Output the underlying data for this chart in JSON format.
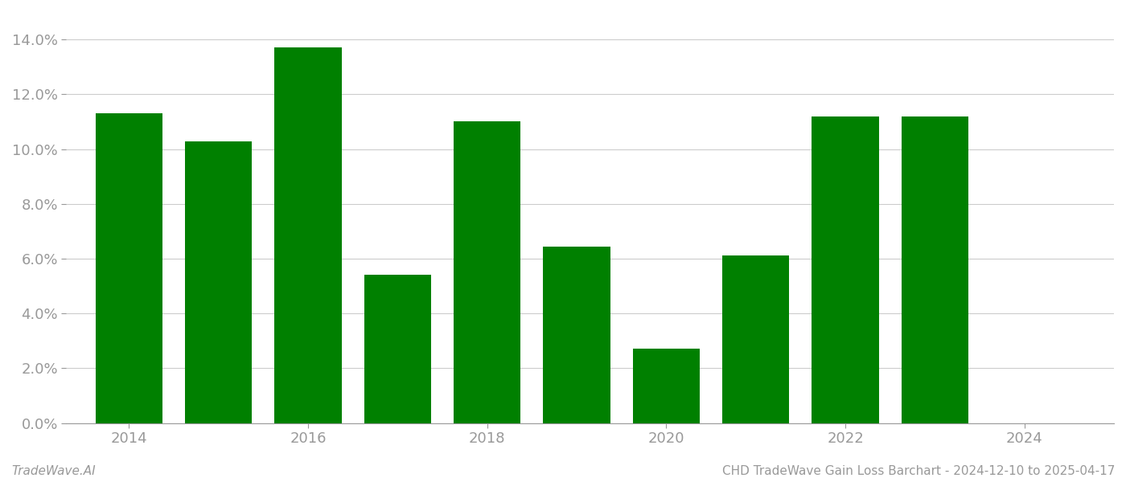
{
  "years": [
    2014,
    2015,
    2016,
    2017,
    2018,
    2019,
    2020,
    2021,
    2022,
    2023
  ],
  "values": [
    0.113,
    0.1028,
    0.137,
    0.0542,
    0.11,
    0.0643,
    0.027,
    0.0613,
    0.112,
    0.112
  ],
  "bar_color": "#008000",
  "ylim": [
    0,
    0.15
  ],
  "yticks": [
    0.0,
    0.02,
    0.04,
    0.06,
    0.08,
    0.1,
    0.12,
    0.14
  ],
  "xticks": [
    2014,
    2016,
    2018,
    2020,
    2022,
    2024
  ],
  "xlim_left": 2013.3,
  "xlim_right": 2025.0,
  "footer_left": "TradeWave.AI",
  "footer_right": "CHD TradeWave Gain Loss Barchart - 2024-12-10 to 2025-04-17",
  "background_color": "#ffffff",
  "grid_color": "#cccccc",
  "tick_color": "#999999",
  "footer_fontsize": 11,
  "tick_fontsize": 13,
  "bar_width": 0.75
}
